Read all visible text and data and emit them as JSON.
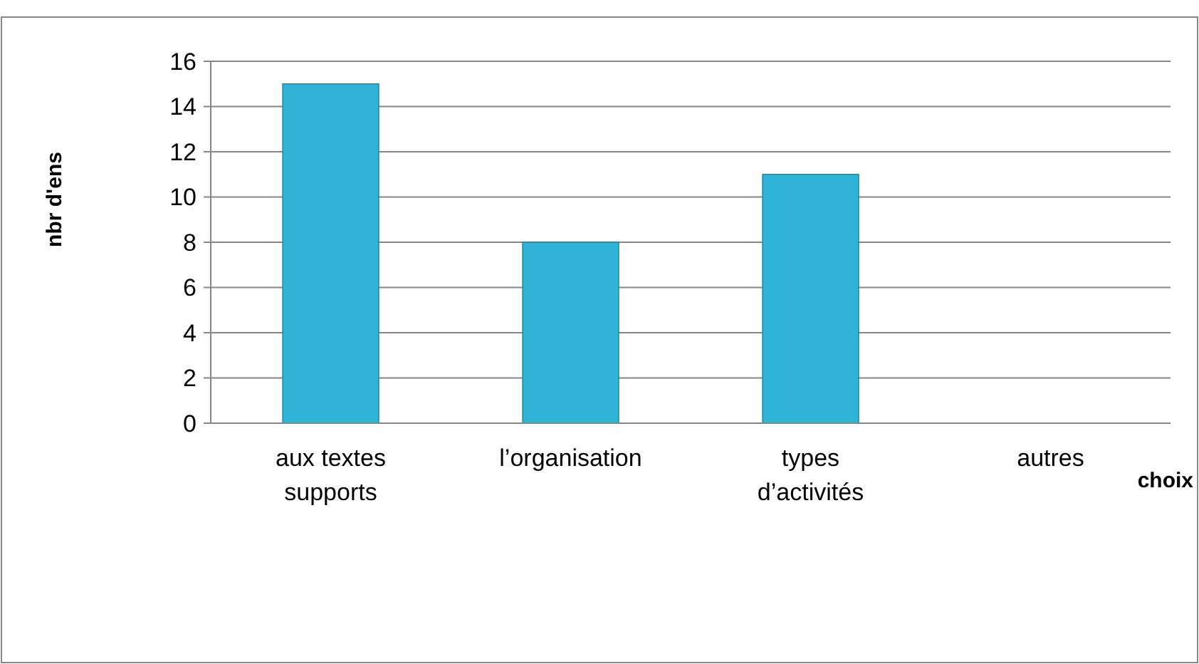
{
  "chart_data": {
    "type": "bar",
    "categories": [
      "aux textes supports",
      "l’organisation",
      "types d’activités",
      "autres"
    ],
    "values": [
      15,
      8,
      11,
      0
    ],
    "color": "#2fb3d6",
    "xlabel": "choix",
    "ylabel": "nbr d'ens",
    "ylim": [
      0,
      16
    ],
    "yticks": [
      0,
      2,
      4,
      6,
      8,
      10,
      12,
      14,
      16
    ],
    "grid": "y"
  }
}
